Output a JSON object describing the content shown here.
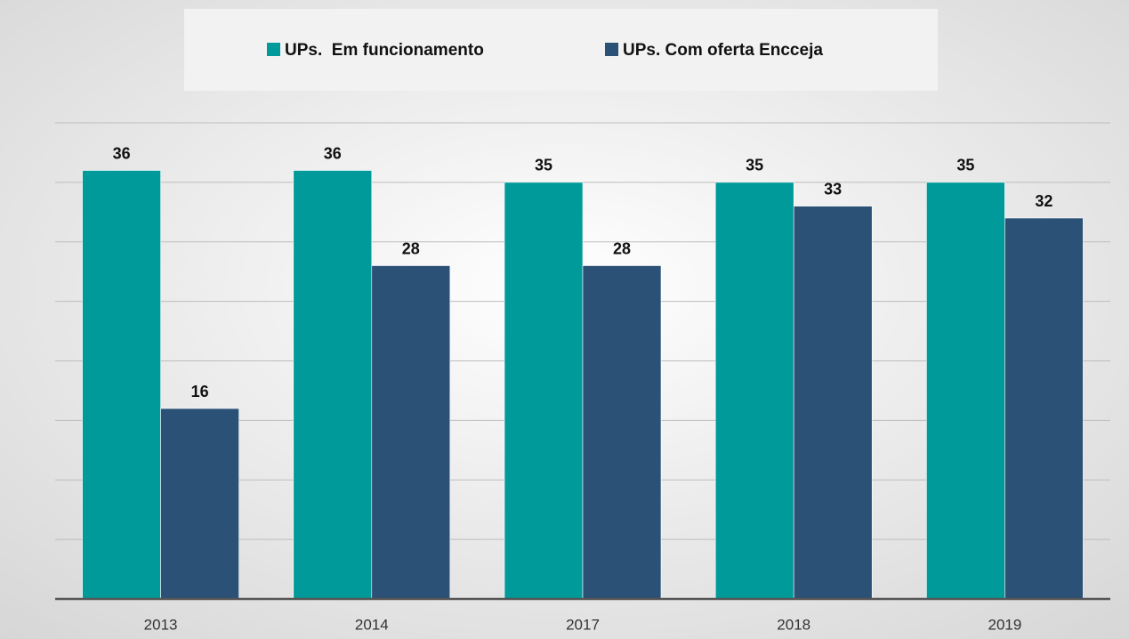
{
  "chart_data": {
    "type": "bar",
    "categories": [
      "2013",
      "2014",
      "2017",
      "2018",
      "2019"
    ],
    "series": [
      {
        "name": "UPs.  Em funcionamento",
        "color": "#009a9a",
        "values": [
          36,
          36,
          35,
          35,
          35
        ]
      },
      {
        "name": "UPs. Com oferta Encceja",
        "color": "#2b5176",
        "values": [
          16,
          28,
          28,
          33,
          32
        ]
      }
    ],
    "ylim": [
      0,
      40
    ],
    "yticks": [
      0,
      5,
      10,
      15,
      20,
      25,
      30,
      35,
      40
    ],
    "grid": true,
    "legend": "top"
  }
}
